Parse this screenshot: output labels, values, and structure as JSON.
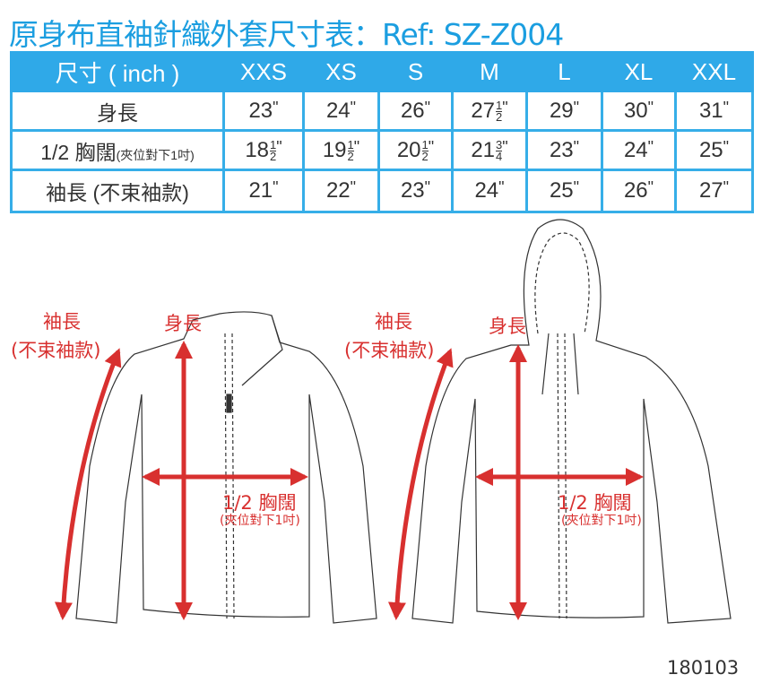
{
  "title": "原身布直袖針織外套尺寸表：Ref: SZ-Z004",
  "colors": {
    "accent": "#2fa9e8",
    "title": "#1b9ee0",
    "measure": "#d8302f"
  },
  "table": {
    "header": "尺寸 ( inch )",
    "sizes": [
      "XXS",
      "XS",
      "S",
      "M",
      "L",
      "XL",
      "XXL"
    ],
    "rows": [
      {
        "label": "身長",
        "label_note": "",
        "values": [
          {
            "w": "23"
          },
          {
            "w": "24"
          },
          {
            "w": "26"
          },
          {
            "w": "27",
            "n": "1",
            "d": "2"
          },
          {
            "w": "29"
          },
          {
            "w": "30"
          },
          {
            "w": "31"
          }
        ]
      },
      {
        "label": "1/2 胸闊",
        "label_note": "(夾位對下1吋)",
        "values": [
          {
            "w": "18",
            "n": "1",
            "d": "2"
          },
          {
            "w": "19",
            "n": "1",
            "d": "2"
          },
          {
            "w": "20",
            "n": "1",
            "d": "2"
          },
          {
            "w": "21",
            "n": "3",
            "d": "4"
          },
          {
            "w": "23"
          },
          {
            "w": "24"
          },
          {
            "w": "25"
          }
        ]
      },
      {
        "label": "袖長 (不束袖款)",
        "label_note": "",
        "values": [
          {
            "w": "21"
          },
          {
            "w": "22"
          },
          {
            "w": "23"
          },
          {
            "w": "24"
          },
          {
            "w": "25"
          },
          {
            "w": "26"
          },
          {
            "w": "27"
          }
        ]
      }
    ],
    "unit_mark": "\""
  },
  "diagram": {
    "sleeve": "袖長",
    "sleeve_note": "(不束袖款)",
    "length": "身長",
    "chest": "1/2 胸闊",
    "chest_note": "(夾位對下1吋)"
  },
  "code": "180103"
}
